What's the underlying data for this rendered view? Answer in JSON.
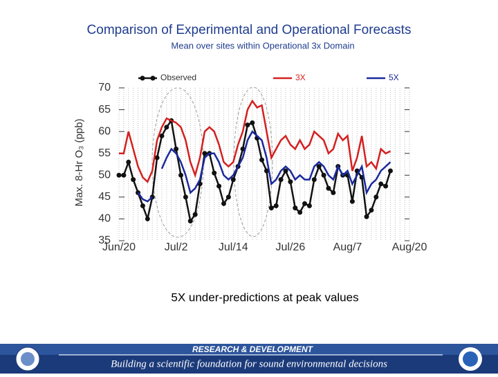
{
  "chart_data": {
    "type": "line",
    "title": "Comparison of Experimental and Operational Forecasts",
    "subtitle": "Mean over sites within Operational 3x Domain",
    "y_label": "Max. 8-Hr O₃ (ppb)",
    "annotation": "5X under-predictions at peak values",
    "categories": [
      "Jun/20",
      null,
      null,
      null,
      null,
      null,
      null,
      null,
      null,
      null,
      null,
      null,
      "Jul/2",
      null,
      null,
      null,
      null,
      null,
      null,
      null,
      null,
      null,
      null,
      null,
      "Jul/14",
      null,
      null,
      null,
      null,
      null,
      null,
      null,
      null,
      null,
      null,
      null,
      "Jul/26",
      null,
      null,
      null,
      null,
      null,
      null,
      null,
      null,
      null,
      null,
      null,
      "Aug/7",
      null,
      null,
      null,
      null,
      null,
      null,
      null,
      null,
      null,
      null,
      null,
      null,
      "Aug/20"
    ],
    "ylim": [
      35,
      70
    ],
    "yticks": [
      35,
      40,
      45,
      50,
      55,
      60,
      65,
      70
    ],
    "grid": true,
    "series": [
      {
        "name": "Observed",
        "color": "#111111",
        "marker": true,
        "values": [
          50,
          50,
          53,
          49,
          46,
          43,
          40,
          45,
          54,
          59,
          61,
          62.5,
          56,
          50,
          45,
          39.5,
          41,
          48,
          55,
          55,
          50.5,
          47.5,
          43.5,
          45,
          49,
          52,
          56,
          61.5,
          62,
          58.5,
          53.5,
          51,
          42.5,
          43,
          49,
          51,
          48.5,
          42.5,
          41.5,
          43.5,
          43,
          49,
          52,
          50,
          47,
          46,
          52,
          50,
          50,
          44,
          51,
          49.5,
          40.5,
          42,
          45,
          48,
          47.5,
          51,
          null,
          null,
          null,
          null
        ]
      },
      {
        "name": "3X",
        "color": "#d42020",
        "marker": false,
        "values": [
          55,
          55,
          60,
          56,
          52,
          49.5,
          48.5,
          51,
          58,
          61,
          63,
          62.5,
          62,
          61,
          58,
          53,
          50,
          54,
          60,
          61,
          60,
          57,
          53,
          52,
          53,
          57,
          60,
          65,
          67,
          65.5,
          66,
          60,
          54,
          56,
          58,
          59,
          57,
          56,
          58,
          56,
          57,
          60,
          59,
          58,
          55,
          56,
          59.5,
          58,
          59,
          51,
          54,
          59,
          52,
          53,
          51.5,
          56,
          55,
          55.5,
          null,
          null,
          null,
          null
        ]
      },
      {
        "name": "5X",
        "color": "#1a2a9c",
        "marker": false,
        "values": [
          null,
          null,
          null,
          null,
          46,
          44.5,
          44,
          45,
          null,
          51.5,
          54,
          56,
          55,
          53,
          50,
          46,
          47,
          49,
          54,
          55,
          55,
          53,
          50,
          49,
          50,
          52,
          54,
          58,
          60,
          59,
          58,
          54,
          48,
          49,
          51,
          52,
          51,
          49,
          50,
          49,
          49,
          52,
          53,
          52,
          50,
          49,
          52,
          50,
          51,
          48,
          50,
          52,
          46,
          48,
          49,
          51,
          52,
          53,
          null,
          null,
          null,
          null
        ]
      }
    ]
  },
  "footer": {
    "heading": "RESEARCH & DEVELOPMENT",
    "tagline": "Building a scientific foundation for sound environmental decisions"
  }
}
